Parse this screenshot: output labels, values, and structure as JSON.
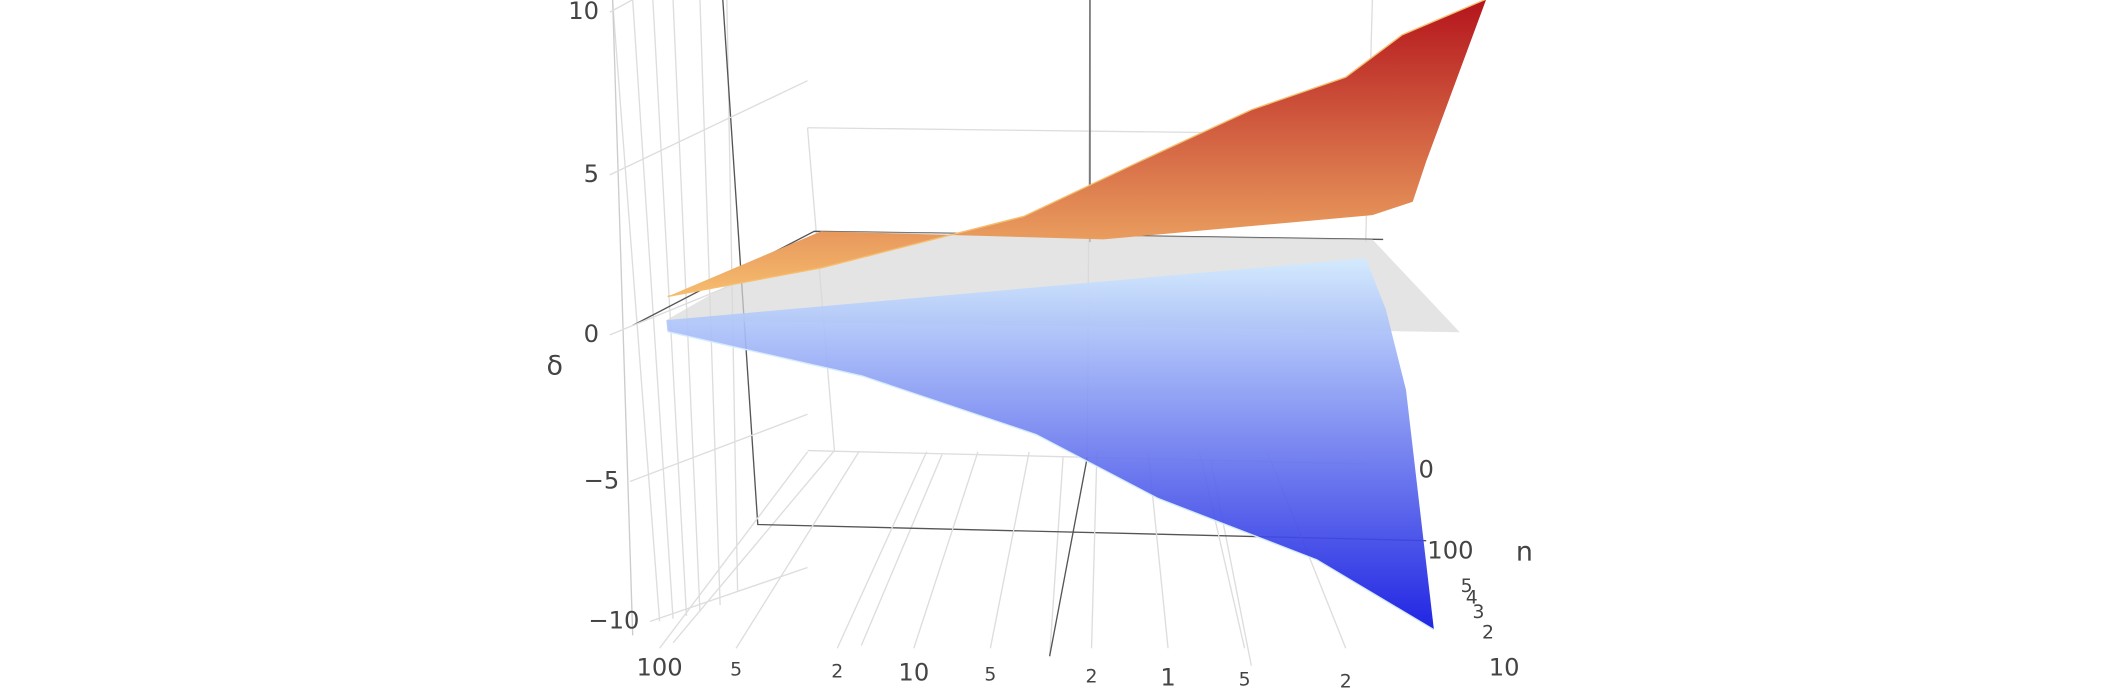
{
  "chart_data": {
    "type": "surface",
    "zaxis_title": "δ",
    "naxis_title": "n",
    "xscale": "log",
    "xlim": [
      100,
      0.05
    ],
    "xticks": [
      100,
      {
        "value": 50,
        "label": "5"
      },
      {
        "value": 20,
        "label": "2"
      },
      10,
      {
        "value": 5,
        "label": "5"
      },
      {
        "value": 2,
        "label": "2"
      },
      1,
      {
        "value": 0.5,
        "label": "5"
      },
      {
        "value": 0.2,
        "label": "2"
      }
    ],
    "zlim": [
      -10.5,
      10.5
    ],
    "zticks": [
      10,
      5,
      0,
      {
        "value": -5,
        "label": "−5"
      },
      {
        "value": -10,
        "label": "−10"
      }
    ],
    "nticks": [
      {
        "value": 1000,
        "label": "0"
      },
      100,
      {
        "value": 50,
        "label": "5"
      },
      {
        "value": 40,
        "label": "4"
      },
      {
        "value": 30,
        "label": "3"
      },
      {
        "value": 20,
        "label": "2"
      },
      10
    ],
    "grid": true,
    "series": [
      {
        "colors": [
          "#b4141c",
          "#f6bd6e"
        ],
        "x": [
          93,
          23,
          3.7,
          1.3,
          0.47,
          0.2,
          0.12,
          0.056
        ],
        "values": [
          1.2,
          2.1,
          3.7,
          5.4,
          7.0,
          8.0,
          9.3,
          10.4
        ]
      },
      {
        "colors": [
          "#d2ebff",
          "#0d12e0"
        ],
        "x": [
          93,
          16,
          3.3,
          1.1,
          0.26,
          0.09
        ],
        "values": [
          0.1,
          -1.4,
          -3.4,
          -5.6,
          -7.8,
          -10.3
        ]
      }
    ]
  }
}
